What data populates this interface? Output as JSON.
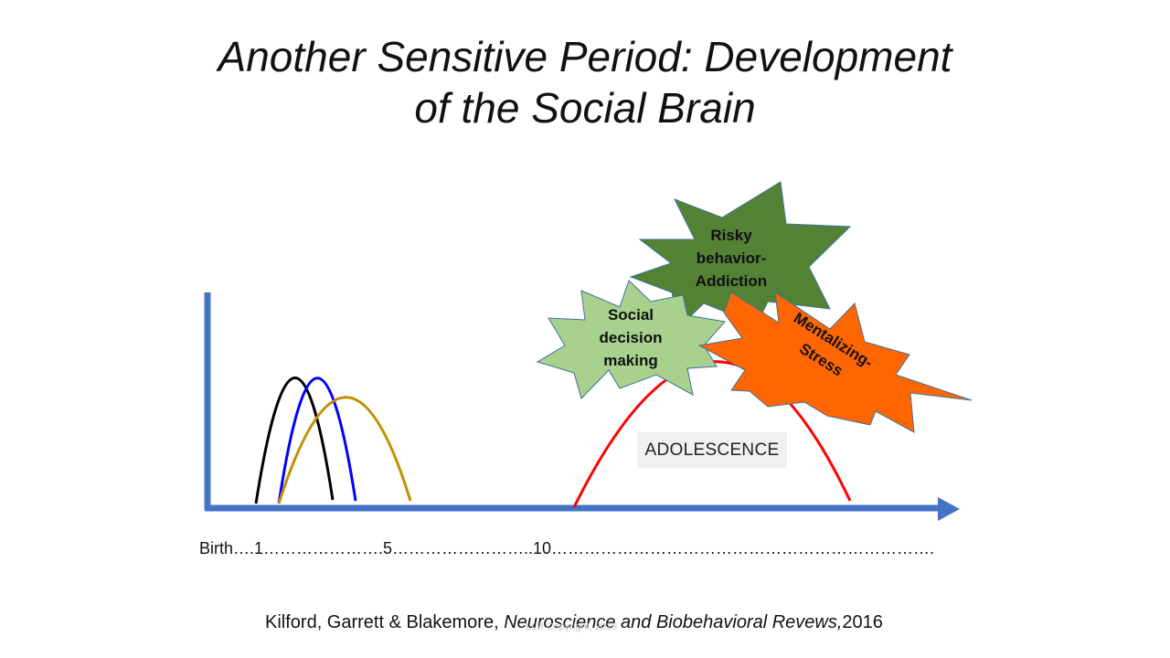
{
  "title": {
    "line1": "Another Sensitive Period:   Development",
    "line2": "of the Social Brain"
  },
  "timeline_text": "Birth….1………………….5……………………..10…………………………………………………………….",
  "adolescence_label": "ADOLESCENCE",
  "bursts": {
    "social": [
      "Social",
      "decision",
      "making"
    ],
    "risky": [
      "Risky",
      "behavior-",
      "Addiction"
    ],
    "mentalizing": [
      "Mentalizing-",
      "Stress"
    ]
  },
  "citation": {
    "authors": "Kilford, Garrett & Blakemore, ",
    "journal": "Neuroscience and Biobehavioral Revews,",
    "year": "2016"
  },
  "watermark": "LLB Copyright, 2019",
  "colors": {
    "axis": "#4472C4",
    "curve_black": "#000000",
    "curve_blue": "#0000FF",
    "curve_gold": "#BF9000",
    "curve_red": "#FF0000",
    "burst_light_green": "#A9D18E",
    "burst_dark_green": "#548235",
    "burst_orange": "#FF6600"
  }
}
